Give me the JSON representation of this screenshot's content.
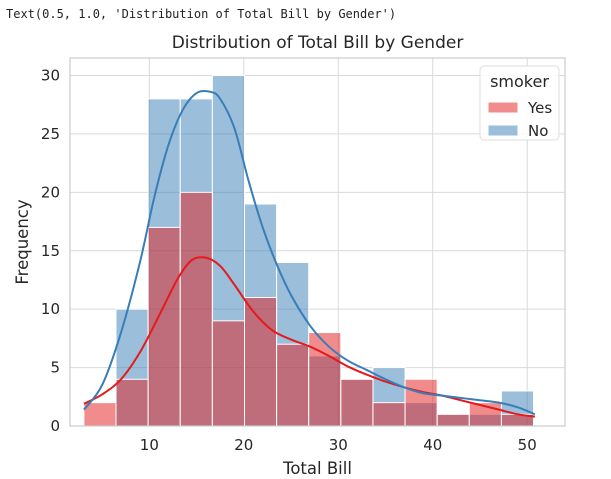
{
  "output_text": "Text(0.5, 1.0, 'Distribution of Total Bill by Gender')",
  "chart_data": {
    "type": "bar",
    "title": "Distribution of Total Bill by Gender",
    "xlabel": "Total Bill",
    "ylabel": "Frequency",
    "xlim": [
      1.6,
      54
    ],
    "ylim": [
      0,
      31.5
    ],
    "xticks": [
      10,
      20,
      30,
      40,
      50
    ],
    "yticks": [
      0,
      5,
      10,
      15,
      20,
      25,
      30
    ],
    "grid": true,
    "legend": {
      "title": "smoker",
      "position": "top-right"
    },
    "bin_edges": [
      3.07,
      6.47,
      9.87,
      13.27,
      16.67,
      20.07,
      23.47,
      26.87,
      30.27,
      33.67,
      37.07,
      40.47,
      43.87,
      47.27,
      50.67
    ],
    "series": [
      {
        "name": "Yes",
        "color": "#e41a1c",
        "values": [
          2,
          4,
          17,
          20,
          9,
          11,
          7,
          8,
          4,
          2,
          4,
          1,
          2,
          1
        ]
      },
      {
        "name": "No",
        "color": "#377eb8",
        "values": [
          0,
          10,
          28,
          28,
          30,
          19,
          14,
          6,
          4,
          5,
          2,
          1,
          1,
          3
        ]
      }
    ],
    "kde": [
      {
        "name": "Yes",
        "color": "#e41a1c",
        "x": [
          3.07,
          5,
          7,
          9,
          11,
          13,
          14.5,
          16,
          17.5,
          19,
          21,
          23,
          25,
          27,
          29,
          31,
          33,
          35,
          37,
          39,
          41,
          43,
          45,
          47,
          49,
          50.81
        ],
        "y": [
          1.9,
          2.7,
          4.0,
          6.3,
          9.4,
          12.6,
          14.2,
          14.4,
          13.7,
          12.1,
          9.8,
          8.2,
          7.4,
          6.8,
          6.0,
          5.1,
          4.4,
          3.8,
          3.3,
          2.9,
          2.6,
          2.2,
          1.8,
          1.4,
          1.0,
          0.8
        ]
      },
      {
        "name": "No",
        "color": "#377eb8",
        "x": [
          3.07,
          5,
          7,
          9,
          10.5,
          12,
          13.5,
          15,
          16.5,
          17.5,
          19,
          20.5,
          22,
          23.5,
          25,
          27,
          29,
          31,
          33,
          35,
          37,
          39,
          41,
          43,
          45,
          47,
          49,
          50.81
        ],
        "y": [
          1.4,
          3.5,
          8.0,
          14.0,
          19.5,
          24.0,
          27.0,
          28.5,
          28.6,
          28.0,
          25.5,
          21.0,
          17.0,
          13.8,
          11.2,
          8.6,
          6.8,
          5.6,
          4.8,
          4.0,
          3.3,
          2.8,
          2.6,
          2.4,
          2.2,
          2.0,
          1.6,
          1.0
        ]
      }
    ]
  }
}
